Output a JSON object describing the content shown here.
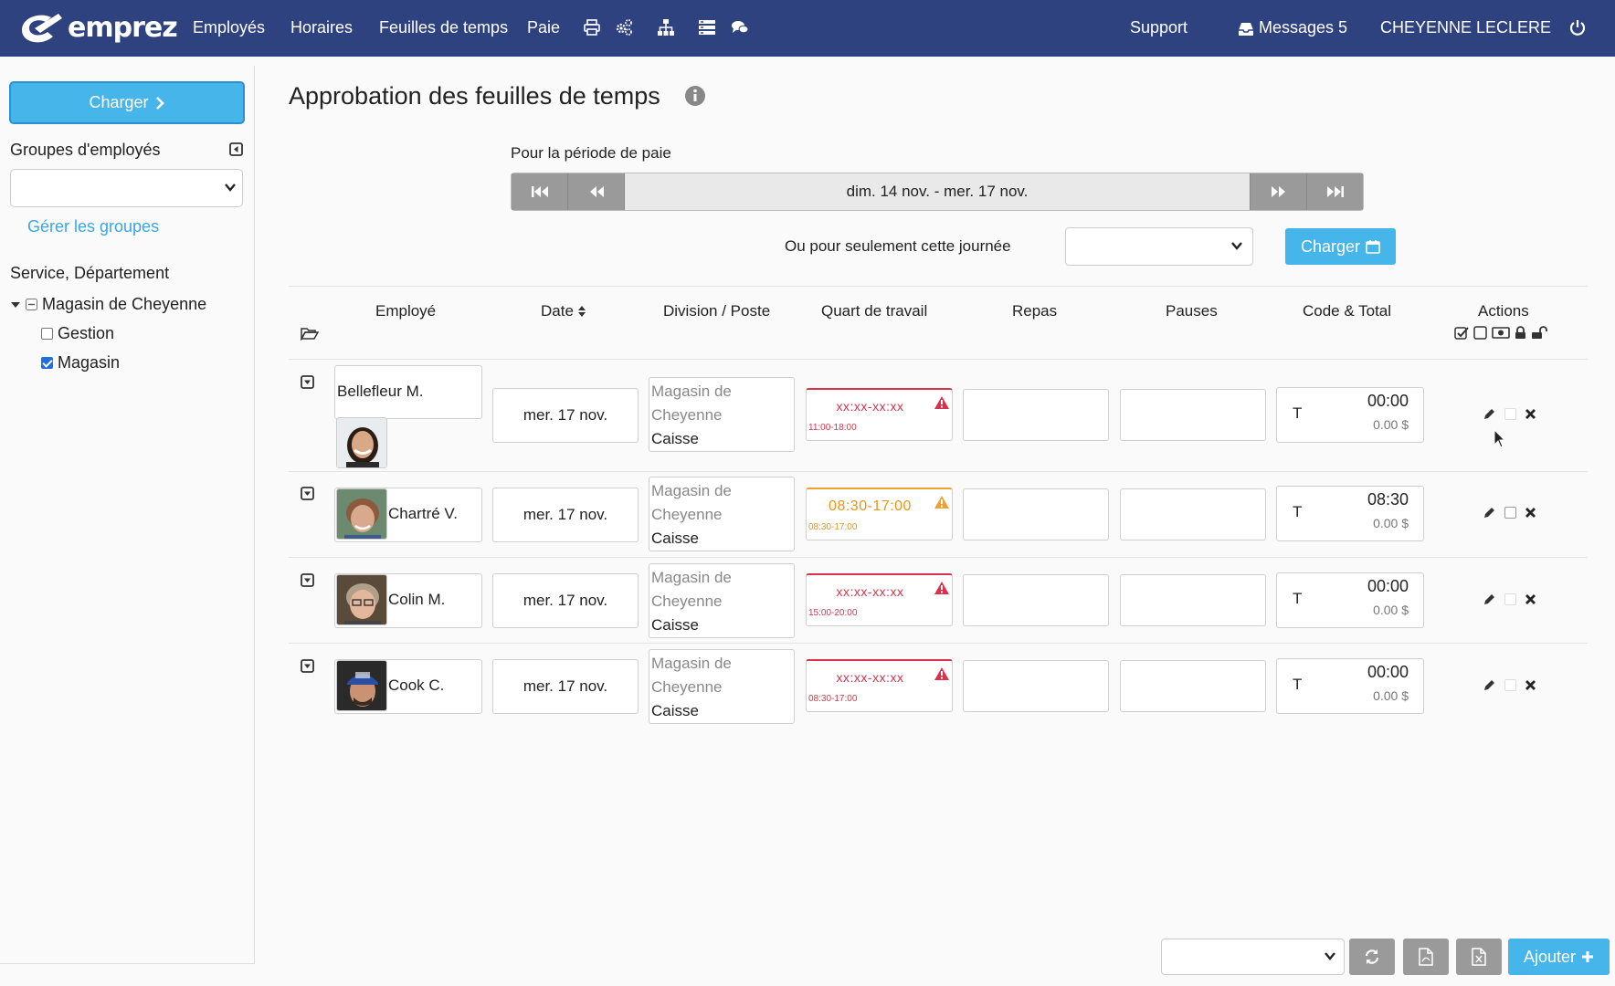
{
  "nav": {
    "logo": "emprez",
    "items": [
      "Employés",
      "Horaires",
      "Feuilles de temps",
      "Paie"
    ],
    "support": "Support",
    "messages": "Messages 5",
    "user": "CHEYENNE LECLERE"
  },
  "sidebar": {
    "load_button": "Charger",
    "groups_label": "Groupes d'employés",
    "manage_groups": "Gérer les groupes",
    "service_label": "Service, Département",
    "tree_root": "Magasin de Cheyenne",
    "tree_children": [
      {
        "label": "Gestion",
        "checked": false
      },
      {
        "label": "Magasin",
        "checked": true
      }
    ]
  },
  "main": {
    "title": "Approbation des feuilles de temps",
    "period_label": "Pour la période de paie",
    "period_range": "dim. 14 nov. - mer. 17 nov.",
    "day_label": "Ou pour seulement cette journée",
    "day_load_button": "Charger",
    "columns": {
      "employee": "Employé",
      "date": "Date",
      "division": "Division / Poste",
      "shift": "Quart de travail",
      "meals": "Repas",
      "breaks": "Pauses",
      "total": "Code & Total",
      "actions": "Actions"
    },
    "rows": [
      {
        "name": "Bellefleur M.",
        "date": "mer. 17 nov.",
        "division": "Magasin de Cheyenne",
        "post": "Caisse",
        "shift": "xx:xx-xx:xx",
        "scheduled": "11:00-18:00",
        "code": "T",
        "time": "00:00",
        "amount": "0.00 $",
        "status": "error"
      },
      {
        "name": "Chartré V.",
        "date": "mer. 17 nov.",
        "division": "Magasin de Cheyenne",
        "post": "Caisse",
        "shift": "08:30-17:00",
        "scheduled": "08:30-17:00",
        "code": "T",
        "time": "08:30",
        "amount": "0.00 $",
        "status": "warning"
      },
      {
        "name": "Colin M.",
        "date": "mer. 17 nov.",
        "division": "Magasin de Cheyenne",
        "post": "Caisse",
        "shift": "xx:xx-xx:xx",
        "scheduled": "15:00-20:00",
        "code": "T",
        "time": "00:00",
        "amount": "0.00 $",
        "status": "error"
      },
      {
        "name": "Cook C.",
        "date": "mer. 17 nov.",
        "division": "Magasin de Cheyenne",
        "post": "Caisse",
        "shift": "xx:xx-xx:xx",
        "scheduled": "08:30-17:00",
        "code": "T",
        "time": "00:00",
        "amount": "0.00 $",
        "status": "error"
      }
    ]
  },
  "footer": {
    "add_button": "Ajouter"
  },
  "colors": {
    "navbar": "#2f4280",
    "accent": "#45b5ea",
    "error": "#d8334a",
    "warning": "#f0a030"
  }
}
